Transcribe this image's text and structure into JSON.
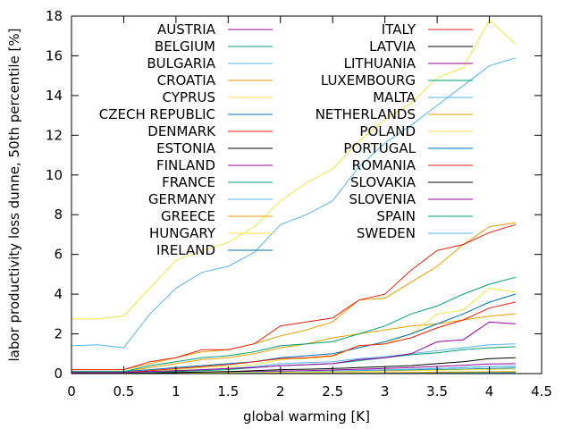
{
  "chart_data": {
    "type": "line",
    "title": "",
    "xlabel": "global warming [K]",
    "ylabel": "labor productivity loss dunne, 50th percentile [%]",
    "xlim": [
      0,
      4.5
    ],
    "ylim": [
      0,
      18
    ],
    "x_ticks": [
      "0",
      "0.5",
      "1",
      "1.5",
      "2",
      "2.5",
      "3",
      "3.5",
      "4",
      "4.5"
    ],
    "y_ticks": [
      "0",
      "2",
      "4",
      "6",
      "8",
      "10",
      "12",
      "14",
      "16",
      "18"
    ],
    "grid": false,
    "legend_position": "top, two columns",
    "x": [
      0,
      0.25,
      0.5,
      0.75,
      1,
      1.25,
      1.5,
      1.75,
      2,
      2.25,
      2.5,
      2.75,
      3,
      3.25,
      3.5,
      3.75,
      4,
      4.25
    ],
    "series": [
      {
        "name": "AUSTRIA",
        "color": "#94009f",
        "values": [
          0.02,
          0.02,
          0.02,
          0.03,
          0.05,
          0.06,
          0.08,
          0.1,
          0.13,
          0.15,
          0.18,
          0.22,
          0.26,
          0.3,
          0.36,
          0.42,
          0.48,
          0.5
        ]
      },
      {
        "name": "BELGIUM",
        "color": "#009e73",
        "values": [
          0.01,
          0.01,
          0.01,
          0.02,
          0.03,
          0.04,
          0.05,
          0.06,
          0.08,
          0.1,
          0.12,
          0.15,
          0.18,
          0.21,
          0.25,
          0.3,
          0.35,
          0.38
        ]
      },
      {
        "name": "BULGARIA",
        "color": "#56b4e9",
        "values": [
          0.05,
          0.05,
          0.05,
          0.1,
          0.15,
          0.2,
          0.25,
          0.35,
          0.5,
          0.55,
          0.6,
          0.75,
          0.85,
          1.0,
          1.15,
          1.3,
          1.45,
          1.5
        ]
      },
      {
        "name": "CROATIA",
        "color": "#e69f00",
        "values": [
          0.1,
          0.1,
          0.1,
          0.3,
          0.5,
          0.7,
          0.8,
          1.0,
          1.3,
          1.5,
          1.8,
          2.0,
          2.2,
          2.4,
          2.5,
          2.7,
          2.9,
          3.0
        ]
      },
      {
        "name": "CYPRUS",
        "color": "#f0e442",
        "values": [
          2.75,
          2.75,
          2.9,
          4.3,
          5.7,
          6.2,
          6.6,
          7.4,
          8.7,
          9.6,
          10.3,
          11.7,
          12.8,
          13.6,
          14.9,
          15.4,
          17.8,
          16.6
        ]
      },
      {
        "name": "CZECH REPUBLIC",
        "color": "#0072b2",
        "values": [
          0.01,
          0.01,
          0.01,
          0.02,
          0.03,
          0.04,
          0.05,
          0.06,
          0.08,
          0.1,
          0.11,
          0.13,
          0.15,
          0.17,
          0.2,
          0.22,
          0.25,
          0.28
        ]
      },
      {
        "name": "DENMARK",
        "color": "#e51e10",
        "values": [
          0.0,
          0.0,
          0.0,
          0.0,
          0.01,
          0.01,
          0.01,
          0.01,
          0.02,
          0.02,
          0.02,
          0.03,
          0.03,
          0.04,
          0.05,
          0.05,
          0.06,
          0.06
        ]
      },
      {
        "name": "ESTONIA",
        "color": "#000000",
        "values": [
          0.0,
          0.0,
          0.0,
          0.0,
          0.0,
          0.01,
          0.01,
          0.01,
          0.01,
          0.01,
          0.02,
          0.02,
          0.02,
          0.03,
          0.03,
          0.03,
          0.04,
          0.04
        ]
      },
      {
        "name": "FINLAND",
        "color": "#94009f",
        "values": [
          0.0,
          0.0,
          0.0,
          0.0,
          0.0,
          0.0,
          0.01,
          0.01,
          0.01,
          0.01,
          0.01,
          0.01,
          0.02,
          0.02,
          0.02,
          0.02,
          0.03,
          0.03
        ]
      },
      {
        "name": "FRANCE",
        "color": "#009e73",
        "values": [
          0.0,
          0.0,
          0.0,
          0.05,
          0.1,
          0.15,
          0.2,
          0.3,
          0.4,
          0.45,
          0.5,
          0.65,
          0.8,
          0.95,
          1.05,
          1.2,
          1.3,
          1.35
        ]
      },
      {
        "name": "GERMANY",
        "color": "#56b4e9",
        "values": [
          0.01,
          0.01,
          0.01,
          0.02,
          0.03,
          0.04,
          0.05,
          0.07,
          0.09,
          0.11,
          0.13,
          0.16,
          0.19,
          0.22,
          0.26,
          0.3,
          0.34,
          0.38
        ]
      },
      {
        "name": "GREECE",
        "color": "#e69f00",
        "values": [
          0.2,
          0.2,
          0.2,
          0.5,
          0.8,
          1.1,
          1.2,
          1.5,
          1.9,
          2.2,
          2.6,
          3.7,
          3.8,
          4.6,
          5.4,
          6.5,
          7.4,
          7.6
        ]
      },
      {
        "name": "HUNGARY",
        "color": "#f0e442",
        "values": [
          0.05,
          0.05,
          0.05,
          0.1,
          0.2,
          0.3,
          0.35,
          0.45,
          0.7,
          0.75,
          0.85,
          1.4,
          1.5,
          2.0,
          3.0,
          3.2,
          4.3,
          4.1
        ]
      },
      {
        "name": "IRELAND",
        "color": "#0072b2",
        "values": [
          0.0,
          0.0,
          0.0,
          0.0,
          0.0,
          0.0,
          0.0,
          0.0,
          0.0,
          0.0,
          0.0,
          0.0,
          0.01,
          0.01,
          0.01,
          0.01,
          0.01,
          0.01
        ]
      },
      {
        "name": "ITALY",
        "color": "#e51e10",
        "values": [
          0.2,
          0.2,
          0.2,
          0.6,
          0.8,
          1.2,
          1.2,
          1.5,
          2.4,
          2.6,
          2.8,
          3.7,
          4.0,
          5.2,
          6.2,
          6.5,
          7.1,
          7.5
        ]
      },
      {
        "name": "LATVIA",
        "color": "#000000",
        "values": [
          0.0,
          0.0,
          0.0,
          0.0,
          0.0,
          0.01,
          0.01,
          0.01,
          0.01,
          0.01,
          0.02,
          0.02,
          0.02,
          0.03,
          0.03,
          0.03,
          0.04,
          0.04
        ]
      },
      {
        "name": "LITHUANIA",
        "color": "#94009f",
        "values": [
          0.0,
          0.0,
          0.0,
          0.0,
          0.01,
          0.01,
          0.01,
          0.01,
          0.02,
          0.02,
          0.02,
          0.03,
          0.03,
          0.04,
          0.05,
          0.05,
          0.06,
          0.06
        ]
      },
      {
        "name": "LUXEMBOURG",
        "color": "#009e73",
        "values": [
          0.0,
          0.0,
          0.0,
          0.0,
          0.0,
          0.0,
          0.01,
          0.01,
          0.01,
          0.01,
          0.02,
          0.02,
          0.03,
          0.03,
          0.04,
          0.05,
          0.06,
          0.07
        ]
      },
      {
        "name": "MALTA",
        "color": "#56b4e9",
        "values": [
          1.4,
          1.45,
          1.3,
          3.0,
          4.3,
          5.1,
          5.4,
          6.1,
          7.5,
          8.0,
          8.7,
          10.4,
          11.6,
          12.5,
          13.5,
          14.5,
          15.5,
          15.9
        ]
      },
      {
        "name": "NETHERLANDS",
        "color": "#e69f00",
        "values": [
          0.0,
          0.0,
          0.0,
          0.0,
          0.01,
          0.01,
          0.01,
          0.02,
          0.02,
          0.03,
          0.03,
          0.04,
          0.05,
          0.06,
          0.07,
          0.08,
          0.09,
          0.1
        ]
      },
      {
        "name": "POLAND",
        "color": "#f0e442",
        "values": [
          0.0,
          0.0,
          0.0,
          0.01,
          0.02,
          0.03,
          0.04,
          0.05,
          0.07,
          0.08,
          0.09,
          0.11,
          0.13,
          0.15,
          0.17,
          0.19,
          0.21,
          0.23
        ]
      },
      {
        "name": "PORTUGAL",
        "color": "#0072b2",
        "values": [
          0.1,
          0.1,
          0.1,
          0.2,
          0.3,
          0.4,
          0.5,
          0.6,
          0.8,
          0.9,
          1.0,
          1.3,
          1.6,
          2.0,
          2.5,
          3.0,
          3.6,
          4.0
        ]
      },
      {
        "name": "ROMANIA",
        "color": "#e51e10",
        "values": [
          0.05,
          0.05,
          0.05,
          0.15,
          0.25,
          0.35,
          0.45,
          0.6,
          0.75,
          0.8,
          0.9,
          1.4,
          1.5,
          1.8,
          2.3,
          2.7,
          3.3,
          3.6
        ]
      },
      {
        "name": "SLOVAKIA",
        "color": "#000000",
        "values": [
          0.01,
          0.01,
          0.01,
          0.02,
          0.05,
          0.08,
          0.1,
          0.15,
          0.2,
          0.22,
          0.25,
          0.3,
          0.35,
          0.4,
          0.5,
          0.6,
          0.75,
          0.8
        ]
      },
      {
        "name": "SLOVENIA",
        "color": "#94009f",
        "values": [
          0.05,
          0.05,
          0.05,
          0.1,
          0.15,
          0.2,
          0.25,
          0.3,
          0.4,
          0.45,
          0.5,
          0.7,
          0.8,
          1.0,
          1.6,
          1.7,
          2.6,
          2.5
        ]
      },
      {
        "name": "SPAIN",
        "color": "#009e73",
        "values": [
          0.1,
          0.1,
          0.1,
          0.4,
          0.6,
          0.8,
          0.9,
          1.1,
          1.4,
          1.5,
          1.6,
          2.0,
          2.4,
          3.0,
          3.4,
          4.0,
          4.5,
          4.85
        ]
      },
      {
        "name": "SWEDEN",
        "color": "#56b4e9",
        "values": [
          0.0,
          0.0,
          0.0,
          0.0,
          0.0,
          0.0,
          0.0,
          0.01,
          0.01,
          0.01,
          0.01,
          0.01,
          0.02,
          0.02,
          0.02,
          0.02,
          0.03,
          0.03
        ]
      }
    ]
  }
}
